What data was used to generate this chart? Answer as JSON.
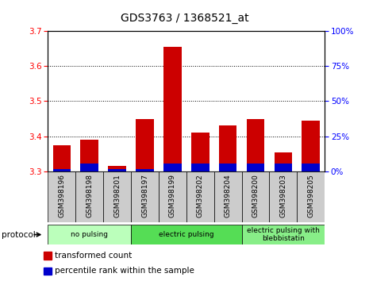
{
  "title": "GDS3763 / 1368521_at",
  "samples": [
    "GSM398196",
    "GSM398198",
    "GSM398201",
    "GSM398197",
    "GSM398199",
    "GSM398202",
    "GSM398204",
    "GSM398200",
    "GSM398203",
    "GSM398205"
  ],
  "transformed_count": [
    3.375,
    3.39,
    3.315,
    3.45,
    3.655,
    3.41,
    3.43,
    3.45,
    3.355,
    3.445
  ],
  "percentile_rank": [
    1.5,
    5.5,
    1.5,
    1.5,
    5.5,
    5.5,
    5.5,
    5.5,
    5.5,
    5.5
  ],
  "ylim_left": [
    3.3,
    3.7
  ],
  "ylim_right": [
    0,
    100
  ],
  "yticks_left": [
    3.3,
    3.4,
    3.5,
    3.6,
    3.7
  ],
  "yticks_right": [
    0,
    25,
    50,
    75,
    100
  ],
  "bar_width": 0.65,
  "bar_color_red": "#cc0000",
  "bar_color_blue": "#0000cc",
  "grid_color": "#000000",
  "bg_plot": "#ffffff",
  "bg_xtick": "#cccccc",
  "protocol_groups": [
    {
      "label": "no pulsing",
      "start": 0,
      "end": 2,
      "color": "#bbffbb"
    },
    {
      "label": "electric pulsing",
      "start": 3,
      "end": 6,
      "color": "#55dd55"
    },
    {
      "label": "electric pulsing with\nblebbistatin",
      "start": 7,
      "end": 9,
      "color": "#88ee88"
    }
  ],
  "legend_items": [
    {
      "label": "transformed count",
      "color": "#cc0000"
    },
    {
      "label": "percentile rank within the sample",
      "color": "#0000cc"
    }
  ],
  "protocol_label": "protocol",
  "title_fontsize": 10,
  "tick_fontsize": 7.5,
  "label_fontsize": 7.5
}
